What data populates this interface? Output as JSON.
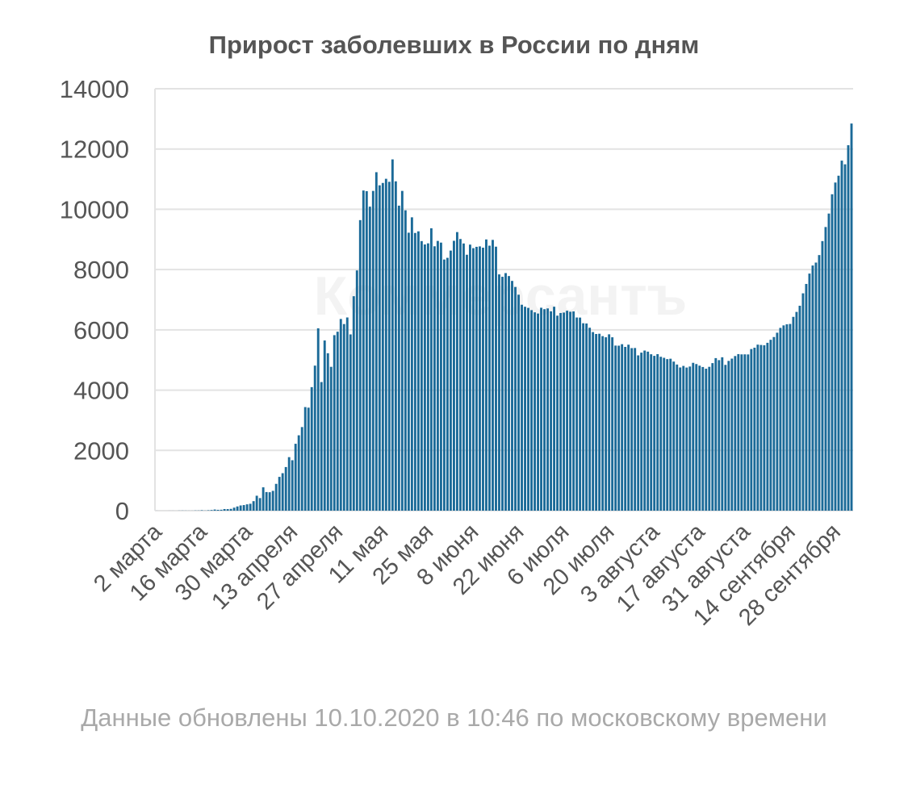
{
  "chart_data": {
    "type": "bar",
    "title": "Прирост заболевших в России по дням",
    "xlabel": "",
    "ylabel": "",
    "ylim": [
      0,
      14000
    ],
    "y_ticks": [
      "0",
      "2000",
      "4000",
      "6000",
      "8000",
      "10000",
      "12000",
      "14000"
    ],
    "x_start_date": "2020-03-02",
    "x_end_date": "2020-10-10",
    "x_tick_labels": [
      "2 марта",
      "16 марта",
      "30 марта",
      "13 апреля",
      "27 апреля",
      "11 мая",
      "25 мая",
      "8 июня",
      "22 июня",
      "6 июля",
      "20 июля",
      "3 августа",
      "17 августа",
      "31 августа",
      "14 сентября",
      "28 сентября"
    ],
    "values": [
      1,
      0,
      0,
      0,
      1,
      1,
      0,
      3,
      4,
      3,
      2,
      2,
      6,
      6,
      14,
      5,
      13,
      21,
      38,
      28,
      31,
      54,
      52,
      60,
      100,
      140,
      173,
      186,
      210,
      229,
      316,
      496,
      418,
      775,
      618,
      612,
      658,
      890,
      1122,
      1244,
      1448,
      1776,
      1674,
      2220,
      2501,
      2774,
      3437,
      3418,
      4099,
      4813,
      6051,
      4268,
      5647,
      5224,
      4773,
      5824,
      5938,
      6361,
      6192,
      6411,
      5849,
      7116,
      7972,
      9641,
      10624,
      10602,
      10088,
      10610,
      11231,
      10796,
      10874,
      11012,
      10913,
      11656,
      10928,
      10121,
      10610,
      9967,
      9224,
      9734,
      9215,
      9269,
      8945,
      8833,
      8870,
      9370,
      8773,
      8951,
      8895,
      8334,
      8390,
      8630,
      8955,
      9244,
      9015,
      8866,
      8492,
      8828,
      8711,
      8755,
      8769,
      8726,
      9000,
      8793,
      8985,
      8760,
      7840,
      7761,
      7883,
      7785,
      7624,
      7422,
      7166,
      6833,
      6767,
      6730,
      6655,
      6581,
      6541,
      6734,
      6686,
      6711,
      6615,
      6768,
      6471,
      6560,
      6574,
      6635,
      6601,
      6611,
      6410,
      6407,
      6219,
      6211,
      6070,
      5926,
      5862,
      5871,
      5792,
      5754,
      5852,
      5753,
      5478,
      5475,
      5524,
      5434,
      5508,
      5394,
      5398,
      5153,
      5244,
      5313,
      5277,
      5190,
      5137,
      5194,
      5106,
      5072,
      5029,
      5042,
      4947,
      4849,
      4752,
      4803,
      4749,
      4783,
      4906,
      4865,
      4812,
      4767,
      4711,
      4773,
      4896,
      5062,
      4995,
      5090,
      4838,
      4970,
      5046,
      5131,
      5195,
      5186,
      5187,
      5184,
      5363,
      5408,
      5509,
      5498,
      5488,
      5570,
      5670,
      5762,
      5905,
      6065,
      6148,
      6184,
      6196,
      6431,
      6595,
      6800,
      7212,
      7523,
      7867,
      8135,
      8232,
      8481,
      8945,
      9412,
      9859,
      10499,
      10888,
      11115,
      11615,
      11493,
      12126,
      12846
    ]
  },
  "footer": {
    "note": "Данные обновлены 10.10.2020 в 10:46 по московскому времени"
  },
  "watermark": {
    "text": "Коммерсантъ"
  },
  "colors": {
    "bar": "#1b6a98",
    "grid": "#e3e3e3",
    "text": "#555555",
    "footer": "#a9a9a9"
  }
}
